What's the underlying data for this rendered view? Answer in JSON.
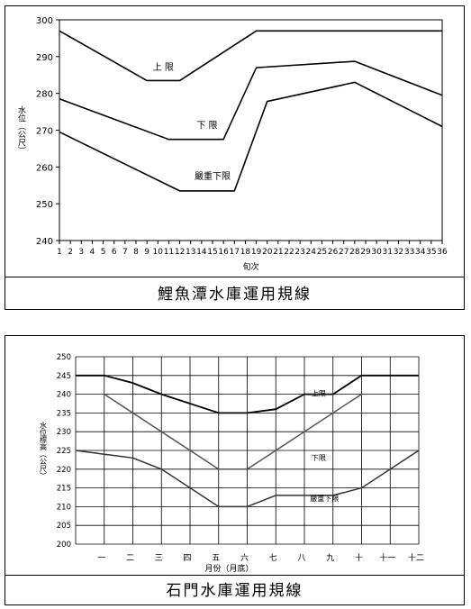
{
  "chart_data": [
    {
      "type": "line",
      "title": "",
      "caption": "鯉魚潭水庫運用規線",
      "xlabel": "旬次",
      "ylabel": "水位（公尺）",
      "ylim": [
        240,
        300
      ],
      "yticks": [
        240,
        250,
        260,
        270,
        280,
        290,
        300
      ],
      "x": [
        1,
        2,
        3,
        4,
        5,
        6,
        7,
        8,
        9,
        10,
        11,
        12,
        13,
        14,
        15,
        16,
        17,
        18,
        19,
        20,
        21,
        22,
        23,
        24,
        25,
        26,
        27,
        28,
        29,
        30,
        31,
        32,
        33,
        34,
        35,
        36
      ],
      "grid": false,
      "series": [
        {
          "name": "上 限",
          "points": [
            [
              1,
              297
            ],
            [
              9,
              283.5
            ],
            [
              12,
              283.5
            ],
            [
              19,
              297
            ],
            [
              36,
              297
            ]
          ]
        },
        {
          "name": "下 限",
          "points": [
            [
              1,
              278.5
            ],
            [
              11,
              267.5
            ],
            [
              16,
              267.5
            ],
            [
              19,
              287
            ],
            [
              28,
              288.7
            ],
            [
              36,
              279.5
            ]
          ]
        },
        {
          "name": "嚴重下限",
          "points": [
            [
              1,
              269.5
            ],
            [
              12,
              253.5
            ],
            [
              17,
              253.5
            ],
            [
              20,
              277.8
            ],
            [
              28,
              283
            ],
            [
              36,
              271
            ]
          ]
        }
      ]
    },
    {
      "type": "line",
      "title": "",
      "caption": "石門水庫運用規線",
      "xlabel": "月份（月底）",
      "ylabel": "水位標高（公尺）",
      "ylim": [
        200,
        250
      ],
      "yticks": [
        200,
        205,
        210,
        215,
        220,
        225,
        230,
        235,
        240,
        245,
        250
      ],
      "categories": [
        "一",
        "二",
        "三",
        "四",
        "五",
        "六",
        "七",
        "八",
        "九",
        "十",
        "十一",
        "十二"
      ],
      "grid": true,
      "series": [
        {
          "name": "上限",
          "points": [
            [
              0,
              245
            ],
            [
              1,
              245
            ],
            [
              2,
              243
            ],
            [
              3,
              240
            ],
            [
              5,
              235
            ],
            [
              6,
              235
            ],
            [
              7,
              236
            ],
            [
              8,
              240
            ],
            [
              9,
              240
            ],
            [
              10,
              245
            ],
            [
              12,
              245
            ]
          ]
        },
        {
          "name": "下限",
          "points": [
            [
              1,
              240
            ],
            [
              5,
              220
            ],
            [
              6,
              220
            ],
            [
              10,
              240
            ]
          ]
        },
        {
          "name": "嚴重下限",
          "points": [
            [
              0,
              225
            ],
            [
              1,
              224
            ],
            [
              2,
              223
            ],
            [
              3,
              220
            ],
            [
              5,
              210
            ],
            [
              6,
              210
            ],
            [
              7,
              213
            ],
            [
              9,
              213
            ],
            [
              10,
              215
            ],
            [
              12,
              225
            ]
          ]
        }
      ]
    }
  ]
}
